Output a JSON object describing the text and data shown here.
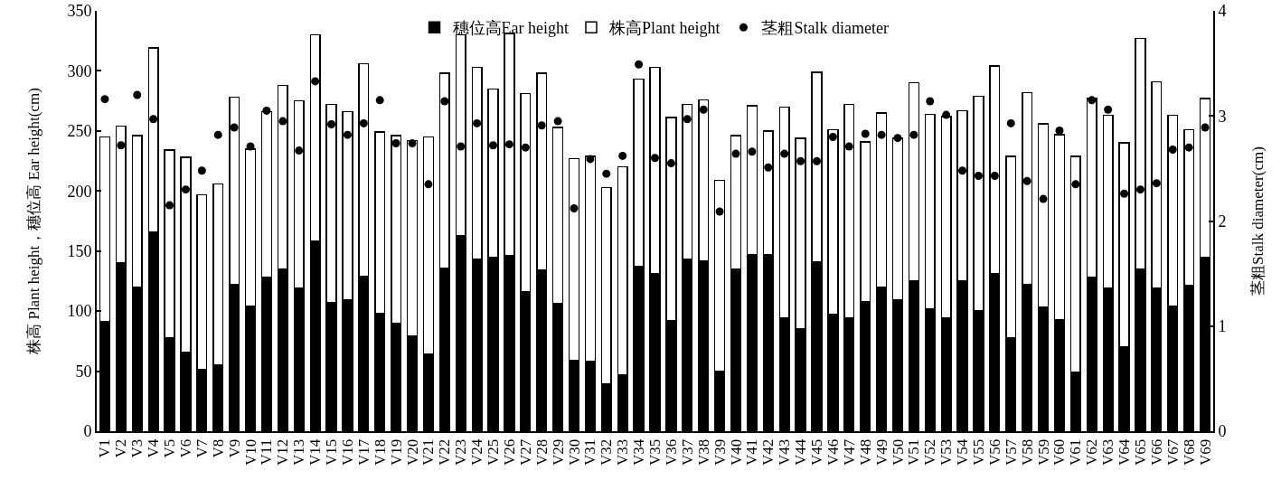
{
  "chart_data": {
    "type": "bar",
    "stacked": true,
    "legend": "top",
    "marker": "circle",
    "ylabel": "株高 Plant height，穗位高 Ear height(cm)",
    "y2label": "茎粗Stalk diameter(cm)",
    "categories": [
      "V1",
      "V2",
      "V3",
      "V4",
      "V5",
      "V6",
      "V7",
      "V8",
      "V9",
      "V10",
      "V11",
      "V12",
      "V13",
      "V14",
      "V15",
      "V16",
      "V17",
      "V18",
      "V19",
      "V20",
      "V21",
      "V22",
      "V23",
      "V24",
      "V25",
      "V26",
      "V27",
      "V28",
      "V29",
      "V30",
      "V31",
      "V32",
      "V33",
      "V34",
      "V35",
      "V36",
      "V37",
      "V38",
      "V39",
      "V40",
      "V41",
      "V42",
      "V43",
      "V44",
      "V45",
      "V46",
      "V47",
      "V48",
      "V49",
      "V50",
      "V51",
      "V52",
      "V53",
      "V54",
      "V55",
      "V56",
      "V57",
      "V58",
      "V59",
      "V60",
      "V61",
      "V62",
      "V63",
      "V64",
      "V65",
      "V66",
      "V67",
      "V68",
      "V69"
    ],
    "series": [
      {
        "name": "穗位高Ear height",
        "color": "#000000",
        "values": [
          91,
          140,
          120,
          166,
          78,
          66,
          51,
          55,
          122,
          104,
          128,
          135,
          119,
          158,
          107,
          109,
          129,
          98,
          90,
          79,
          64,
          136,
          163,
          143,
          145,
          146,
          116,
          134,
          106,
          59,
          58,
          39,
          47,
          137,
          131,
          92,
          143,
          142,
          50,
          135,
          147,
          147,
          94,
          85,
          141,
          97,
          94,
          108,
          120,
          109,
          125,
          102,
          94,
          125,
          100,
          131,
          78,
          122,
          103,
          93,
          49,
          128,
          119,
          70,
          135,
          119,
          104,
          121,
          145
        ]
      },
      {
        "name": "株高Plant height",
        "color": "#ffffff",
        "values": [
          154,
          114,
          126,
          153,
          156,
          162,
          146,
          151,
          156,
          131,
          138,
          153,
          156,
          172,
          165,
          157,
          177,
          151,
          156,
          163,
          181,
          162,
          167,
          160,
          140,
          185,
          165,
          164,
          147,
          168,
          171,
          164,
          173,
          156,
          172,
          169,
          129,
          134,
          159,
          111,
          124,
          103,
          176,
          159,
          158,
          154,
          178,
          133,
          145,
          135,
          165,
          162,
          168,
          142,
          179,
          173,
          151,
          160,
          153,
          154,
          180,
          149,
          144,
          170,
          192,
          172,
          159,
          130,
          132
        ]
      },
      {
        "name": "茎粗Stalk diameter",
        "type": "scatter",
        "axis": "y2",
        "color": "#000000",
        "values": [
          3.16,
          2.72,
          3.2,
          2.97,
          2.15,
          2.3,
          2.48,
          2.82,
          2.89,
          2.71,
          3.05,
          2.95,
          2.67,
          3.33,
          2.92,
          2.82,
          2.93,
          3.15,
          2.74,
          2.74,
          2.35,
          3.14,
          2.71,
          2.93,
          2.72,
          2.73,
          2.7,
          2.91,
          2.95,
          2.12,
          2.59,
          2.45,
          2.62,
          3.49,
          2.6,
          2.55,
          2.97,
          3.06,
          2.09,
          2.64,
          2.66,
          2.51,
          2.64,
          2.57,
          2.57,
          2.8,
          2.71,
          2.83,
          2.82,
          2.79,
          2.82,
          3.14,
          3.01,
          2.48,
          2.43,
          2.43,
          2.93,
          2.38,
          2.21,
          2.86,
          2.35,
          3.15,
          3.06,
          2.26,
          2.3,
          2.36,
          2.68,
          2.7,
          2.89
        ]
      }
    ],
    "ylim": [
      0,
      350
    ],
    "yticks": [
      0,
      50,
      100,
      150,
      200,
      250,
      300,
      350
    ],
    "y2lim": [
      0,
      4
    ],
    "y2ticks": [
      0,
      1,
      2,
      3,
      4
    ]
  }
}
